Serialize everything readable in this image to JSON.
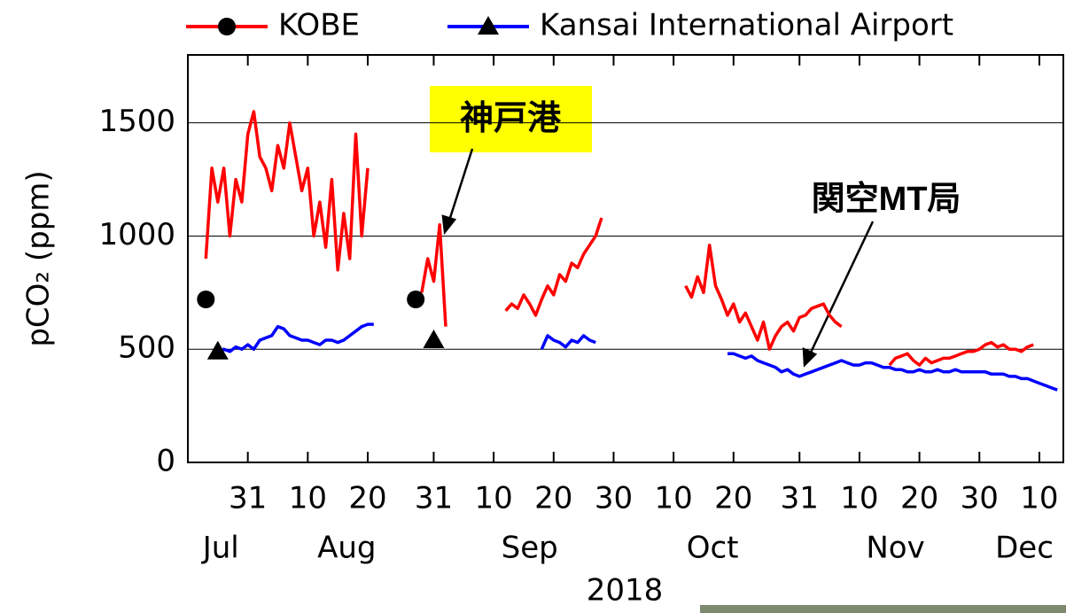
{
  "chart_data": {
    "type": "line",
    "ylabel": "pCO₂ (ppm)",
    "xlabel": "2018",
    "ylim": [
      0,
      1800
    ],
    "yticks": [
      0,
      500,
      1000,
      1500
    ],
    "grid": true,
    "xlim": [
      "2018-07-21",
      "2018-12-14"
    ],
    "xticks": [
      {
        "value": "2018-07-31",
        "label": "31"
      },
      {
        "value": "2018-08-10",
        "label": "10"
      },
      {
        "value": "2018-08-20",
        "label": "20"
      },
      {
        "value": "2018-08-31",
        "label": "31"
      },
      {
        "value": "2018-09-10",
        "label": "10"
      },
      {
        "value": "2018-09-20",
        "label": "20"
      },
      {
        "value": "2018-09-30",
        "label": "30"
      },
      {
        "value": "2018-10-10",
        "label": "10"
      },
      {
        "value": "2018-10-20",
        "label": "20"
      },
      {
        "value": "2018-10-31",
        "label": "31"
      },
      {
        "value": "2018-11-10",
        "label": "10"
      },
      {
        "value": "2018-11-20",
        "label": "20"
      },
      {
        "value": "2018-11-30",
        "label": "30"
      },
      {
        "value": "2018-12-10",
        "label": "10"
      }
    ],
    "month_labels": [
      {
        "value": "2018-07",
        "label": "Jul"
      },
      {
        "value": "2018-08",
        "label": "Aug"
      },
      {
        "value": "2018-09",
        "label": "Sep"
      },
      {
        "value": "2018-10",
        "label": "Oct"
      },
      {
        "value": "2018-11",
        "label": "Nov"
      },
      {
        "value": "2018-12",
        "label": "Dec"
      }
    ],
    "legend": "top",
    "annotations": [
      "神戸港",
      "関空MT局"
    ],
    "x": [
      "2018-07-24",
      "2018-07-25",
      "2018-07-26",
      "2018-07-27",
      "2018-07-28",
      "2018-07-29",
      "2018-07-30",
      "2018-07-31",
      "2018-08-01",
      "2018-08-02",
      "2018-08-03",
      "2018-08-04",
      "2018-08-05",
      "2018-08-06",
      "2018-08-07",
      "2018-08-08",
      "2018-08-09",
      "2018-08-10",
      "2018-08-11",
      "2018-08-12",
      "2018-08-13",
      "2018-08-14",
      "2018-08-15",
      "2018-08-16",
      "2018-08-17",
      "2018-08-18",
      "2018-08-19",
      "2018-08-20",
      "2018-08-21",
      "2018-08-22",
      "2018-08-23",
      "2018-08-24",
      "2018-08-25",
      "2018-08-26",
      "2018-08-27",
      "2018-08-28",
      "2018-08-29",
      "2018-08-30",
      "2018-08-31",
      "2018-09-01",
      "2018-09-02",
      "2018-09-03",
      "2018-09-04",
      "2018-09-05",
      "2018-09-06",
      "2018-09-07",
      "2018-09-08",
      "2018-09-09",
      "2018-09-10",
      "2018-09-11",
      "2018-09-12",
      "2018-09-13",
      "2018-09-14",
      "2018-09-15",
      "2018-09-16",
      "2018-09-17",
      "2018-09-18",
      "2018-09-19",
      "2018-09-20",
      "2018-09-21",
      "2018-09-22",
      "2018-09-23",
      "2018-09-24",
      "2018-09-25",
      "2018-09-26",
      "2018-09-27",
      "2018-09-28",
      "2018-09-29",
      "2018-09-30",
      "2018-10-01",
      "2018-10-02",
      "2018-10-03",
      "2018-10-04",
      "2018-10-05",
      "2018-10-06",
      "2018-10-07",
      "2018-10-08",
      "2018-10-09",
      "2018-10-10",
      "2018-10-11",
      "2018-10-12",
      "2018-10-13",
      "2018-10-14",
      "2018-10-15",
      "2018-10-16",
      "2018-10-17",
      "2018-10-18",
      "2018-10-19",
      "2018-10-20",
      "2018-10-21",
      "2018-10-22",
      "2018-10-23",
      "2018-10-24",
      "2018-10-25",
      "2018-10-26",
      "2018-10-27",
      "2018-10-28",
      "2018-10-29",
      "2018-10-30",
      "2018-10-31",
      "2018-11-01",
      "2018-11-02",
      "2018-11-03",
      "2018-11-04",
      "2018-11-05",
      "2018-11-06",
      "2018-11-07",
      "2018-11-08",
      "2018-11-09",
      "2018-11-10",
      "2018-11-11",
      "2018-11-12",
      "2018-11-13",
      "2018-11-14",
      "2018-11-15",
      "2018-11-16",
      "2018-11-17",
      "2018-11-18",
      "2018-11-19",
      "2018-11-20",
      "2018-11-21",
      "2018-11-22",
      "2018-11-23",
      "2018-11-24",
      "2018-11-25",
      "2018-11-26",
      "2018-11-27",
      "2018-11-28",
      "2018-11-29",
      "2018-11-30",
      "2018-12-01",
      "2018-12-02",
      "2018-12-03",
      "2018-12-04",
      "2018-12-05",
      "2018-12-06",
      "2018-12-07",
      "2018-12-08",
      "2018-12-09",
      "2018-12-10",
      "2018-12-11",
      "2018-12-12",
      "2018-12-13"
    ],
    "series": [
      {
        "name": "KOBE",
        "color": "#ff0000",
        "marker": "circle",
        "values": [
          900,
          1300,
          1150,
          1300,
          1000,
          1250,
          1150,
          1450,
          1550,
          1350,
          1300,
          1200,
          1400,
          1300,
          1500,
          1350,
          1200,
          1300,
          1000,
          1150,
          950,
          1250,
          850,
          1100,
          900,
          1450,
          1000,
          1300,
          null,
          null,
          null,
          null,
          null,
          null,
          null,
          null,
          750,
          900,
          800,
          1050,
          600,
          null,
          null,
          null,
          null,
          null,
          null,
          null,
          null,
          null,
          670,
          700,
          680,
          740,
          700,
          650,
          720,
          780,
          740,
          830,
          800,
          880,
          860,
          920,
          960,
          1000,
          1080,
          null,
          null,
          null,
          null,
          null,
          null,
          null,
          null,
          null,
          null,
          null,
          null,
          null,
          780,
          730,
          820,
          750,
          960,
          780,
          720,
          650,
          700,
          620,
          660,
          600,
          540,
          620,
          500,
          560,
          600,
          620,
          580,
          640,
          650,
          680,
          690,
          700,
          650,
          620,
          600,
          null,
          null,
          null,
          null,
          null,
          null,
          null,
          430,
          460,
          470,
          480,
          450,
          430,
          460,
          440,
          450,
          460,
          460,
          470,
          480,
          490,
          490,
          500,
          520,
          530,
          510,
          520,
          500,
          500,
          490,
          510,
          520,
          null,
          null,
          null,
          null
        ],
        "markers": {
          "x": [
            "2018-07-24",
            "2018-08-28"
          ],
          "values": [
            720,
            720
          ]
        }
      },
      {
        "name": "Kansai International Airport",
        "color": "#0000ff",
        "marker": "triangle",
        "values": [
          null,
          null,
          480,
          500,
          490,
          510,
          500,
          520,
          500,
          540,
          550,
          560,
          600,
          590,
          560,
          550,
          540,
          540,
          530,
          520,
          540,
          540,
          530,
          540,
          560,
          580,
          600,
          610,
          610,
          null,
          null,
          null,
          null,
          null,
          null,
          null,
          null,
          null,
          null,
          null,
          null,
          null,
          null,
          null,
          null,
          null,
          null,
          null,
          null,
          null,
          null,
          null,
          null,
          null,
          null,
          null,
          500,
          560,
          540,
          530,
          510,
          540,
          530,
          560,
          540,
          530,
          null,
          null,
          null,
          null,
          null,
          null,
          null,
          null,
          null,
          null,
          null,
          null,
          null,
          null,
          null,
          null,
          null,
          null,
          null,
          null,
          null,
          480,
          480,
          470,
          460,
          470,
          450,
          440,
          430,
          420,
          400,
          410,
          390,
          380,
          390,
          400,
          410,
          420,
          430,
          440,
          450,
          440,
          430,
          430,
          440,
          440,
          430,
          420,
          420,
          410,
          410,
          400,
          400,
          410,
          400,
          400,
          410,
          400,
          400,
          410,
          400,
          400,
          400,
          400,
          400,
          390,
          390,
          390,
          380,
          380,
          370,
          370,
          360,
          350,
          340,
          330,
          320
        ],
        "markers": {
          "x": [
            "2018-07-26",
            "2018-08-31"
          ],
          "values": [
            490,
            540
          ]
        }
      }
    ]
  }
}
